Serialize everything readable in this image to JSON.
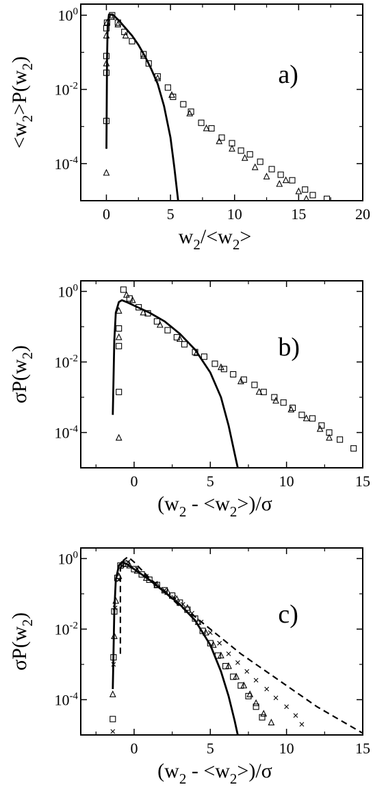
{
  "chart_data": [
    {
      "id": "a",
      "type": "scatter",
      "panel_label": "a)",
      "ylabel": "<w₂>P(w₂)",
      "xlabel": "w₂/<w₂>",
      "y_scale": "log",
      "xlim": [
        -2,
        20
      ],
      "ylim_log10": [
        -5,
        0.3
      ],
      "xticks": [
        0,
        5,
        10,
        15,
        20
      ],
      "xtick_labels": [
        "0",
        "5",
        "10",
        "15",
        "20"
      ],
      "yticks_log10": [
        0,
        -2,
        -4
      ],
      "ytick_labels": [
        "10⁰",
        "10⁻²",
        "10⁻⁴"
      ],
      "grid": false,
      "series": [
        {
          "marker": "square",
          "points": [
            [
              0.0,
              -2.85
            ],
            [
              0.0,
              -1.55
            ],
            [
              0.0,
              -1.1
            ],
            [
              0.0,
              -0.35
            ],
            [
              0.05,
              -0.2
            ],
            [
              0.45,
              0.0
            ],
            [
              0.9,
              -0.2
            ],
            [
              1.4,
              -0.45
            ],
            [
              2.0,
              -0.7
            ],
            [
              2.9,
              -1.05
            ],
            [
              3.3,
              -1.3
            ],
            [
              4.0,
              -1.65
            ],
            [
              4.8,
              -1.95
            ],
            [
              5.2,
              -2.2
            ],
            [
              6.0,
              -2.4
            ],
            [
              6.6,
              -2.6
            ],
            [
              7.4,
              -2.9
            ],
            [
              8.2,
              -3.05
            ],
            [
              9.0,
              -3.3
            ],
            [
              9.8,
              -3.45
            ],
            [
              10.5,
              -3.65
            ],
            [
              11.2,
              -3.75
            ],
            [
              12.0,
              -3.95
            ],
            [
              12.9,
              -4.15
            ],
            [
              13.6,
              -4.3
            ],
            [
              14.5,
              -4.45
            ],
            [
              15.5,
              -4.7
            ],
            [
              16.1,
              -4.85
            ],
            [
              17.2,
              -4.95
            ]
          ]
        },
        {
          "marker": "triangle",
          "points": [
            [
              0.0,
              -4.25
            ],
            [
              0.0,
              -1.3
            ],
            [
              0.0,
              -0.55
            ],
            [
              0.05,
              -0.2
            ],
            [
              0.4,
              -0.05
            ],
            [
              0.9,
              -0.25
            ],
            [
              1.5,
              -0.55
            ],
            [
              2.9,
              -1.1
            ],
            [
              4.0,
              -1.7
            ],
            [
              5.1,
              -2.15
            ],
            [
              6.5,
              -2.65
            ],
            [
              7.8,
              -3.05
            ],
            [
              8.8,
              -3.4
            ],
            [
              9.8,
              -3.6
            ],
            [
              10.8,
              -3.85
            ],
            [
              11.6,
              -4.1
            ],
            [
              12.5,
              -4.35
            ],
            [
              13.5,
              -4.55
            ],
            [
              14.0,
              -4.45
            ],
            [
              15.0,
              -4.75
            ],
            [
              15.6,
              -4.95
            ]
          ]
        },
        {
          "style": "solid",
          "points": [
            [
              0.0,
              -3.6
            ],
            [
              0.05,
              -1.2
            ],
            [
              0.1,
              -0.3
            ],
            [
              0.2,
              0.02
            ],
            [
              0.5,
              0.02
            ],
            [
              1.0,
              -0.15
            ],
            [
              1.5,
              -0.35
            ],
            [
              2.0,
              -0.55
            ],
            [
              2.5,
              -0.8
            ],
            [
              3.0,
              -1.1
            ],
            [
              3.5,
              -1.45
            ],
            [
              4.0,
              -1.85
            ],
            [
              4.5,
              -2.45
            ],
            [
              5.0,
              -3.3
            ],
            [
              5.3,
              -4.1
            ],
            [
              5.6,
              -5.0
            ]
          ]
        }
      ]
    },
    {
      "id": "b",
      "type": "scatter",
      "panel_label": "b)",
      "ylabel": "σP(w₂)",
      "xlabel": "(w₂ - <w₂>)/σ",
      "y_scale": "log",
      "xlim": [
        -3.5,
        15
      ],
      "ylim_log10": [
        -5,
        0.3
      ],
      "xticks": [
        0,
        5,
        10,
        15
      ],
      "xtick_labels": [
        "0",
        "5",
        "10",
        "15"
      ],
      "yticks_log10": [
        0,
        -2,
        -4
      ],
      "ytick_labels": [
        "10⁰",
        "10⁻²",
        "10⁻⁴"
      ],
      "grid": false,
      "series": [
        {
          "marker": "square",
          "points": [
            [
              -1.0,
              -2.85
            ],
            [
              -1.0,
              -1.55
            ],
            [
              -1.0,
              -1.05
            ],
            [
              -0.7,
              0.05
            ],
            [
              -0.3,
              -0.2
            ],
            [
              0.3,
              -0.45
            ],
            [
              0.9,
              -0.62
            ],
            [
              1.5,
              -0.85
            ],
            [
              2.2,
              -1.1
            ],
            [
              2.8,
              -1.3
            ],
            [
              3.3,
              -1.5
            ],
            [
              4.0,
              -1.72
            ],
            [
              4.6,
              -1.85
            ],
            [
              5.3,
              -2.05
            ],
            [
              5.9,
              -2.2
            ],
            [
              6.5,
              -2.35
            ],
            [
              7.2,
              -2.5
            ],
            [
              7.9,
              -2.65
            ],
            [
              8.5,
              -2.85
            ],
            [
              9.2,
              -3.0
            ],
            [
              9.8,
              -3.15
            ],
            [
              10.4,
              -3.3
            ],
            [
              11.0,
              -3.5
            ],
            [
              11.7,
              -3.6
            ],
            [
              12.3,
              -3.8
            ],
            [
              12.8,
              -4.0
            ],
            [
              13.5,
              -4.2
            ],
            [
              14.4,
              -4.45
            ]
          ]
        },
        {
          "marker": "triangle",
          "points": [
            [
              -1.0,
              -4.15
            ],
            [
              -1.0,
              -1.3
            ],
            [
              -1.0,
              -0.55
            ],
            [
              -0.5,
              -0.1
            ],
            [
              -0.1,
              -0.25
            ],
            [
              0.6,
              -0.6
            ],
            [
              1.7,
              -0.95
            ],
            [
              3.0,
              -1.35
            ],
            [
              4.1,
              -1.75
            ],
            [
              5.7,
              -2.15
            ],
            [
              7.0,
              -2.55
            ],
            [
              8.2,
              -2.85
            ],
            [
              9.3,
              -3.1
            ],
            [
              10.3,
              -3.35
            ],
            [
              11.3,
              -3.6
            ],
            [
              12.2,
              -3.9
            ],
            [
              12.8,
              -4.15
            ]
          ]
        },
        {
          "style": "solid",
          "points": [
            [
              -1.4,
              -3.5
            ],
            [
              -1.3,
              -1.4
            ],
            [
              -1.2,
              -0.6
            ],
            [
              -1.0,
              -0.3
            ],
            [
              -0.8,
              -0.25
            ],
            [
              -0.5,
              -0.3
            ],
            [
              0.0,
              -0.4
            ],
            [
              1.0,
              -0.6
            ],
            [
              2.0,
              -0.85
            ],
            [
              3.0,
              -1.2
            ],
            [
              4.0,
              -1.65
            ],
            [
              5.0,
              -2.3
            ],
            [
              5.7,
              -3.0
            ],
            [
              6.2,
              -3.8
            ],
            [
              6.6,
              -4.6
            ],
            [
              6.8,
              -5.0
            ]
          ]
        }
      ]
    },
    {
      "id": "c",
      "type": "scatter",
      "panel_label": "c)",
      "ylabel": "σP(w₂)",
      "xlabel": "(w₂ - <w₂>)/σ",
      "y_scale": "log",
      "xlim": [
        -3.5,
        15
      ],
      "ylim_log10": [
        -5,
        0.3
      ],
      "xticks": [
        0,
        5,
        10,
        15
      ],
      "xtick_labels": [
        "0",
        "5",
        "10",
        "15"
      ],
      "yticks_log10": [
        0,
        -2,
        -4
      ],
      "ytick_labels": [
        "10⁰",
        "10⁻²",
        "10⁻⁴"
      ],
      "grid": false,
      "series": [
        {
          "marker": "square",
          "points": [
            [
              -1.4,
              -4.55
            ],
            [
              -1.35,
              -2.8
            ],
            [
              -1.3,
              -1.5
            ],
            [
              -1.1,
              -0.55
            ],
            [
              -0.9,
              -0.2
            ],
            [
              -0.5,
              -0.15
            ],
            [
              0.0,
              -0.3
            ],
            [
              0.5,
              -0.45
            ],
            [
              1.0,
              -0.6
            ],
            [
              1.5,
              -0.75
            ],
            [
              2.0,
              -0.9
            ],
            [
              2.5,
              -1.05
            ],
            [
              3.0,
              -1.25
            ],
            [
              3.5,
              -1.45
            ],
            [
              4.0,
              -1.7
            ],
            [
              4.5,
              -2.05
            ],
            [
              5.0,
              -2.4
            ],
            [
              5.5,
              -2.75
            ],
            [
              6.0,
              -3.05
            ],
            [
              6.5,
              -3.35
            ],
            [
              7.0,
              -3.6
            ],
            [
              7.5,
              -3.9
            ],
            [
              8.0,
              -4.2
            ],
            [
              8.4,
              -4.5
            ]
          ]
        },
        {
          "marker": "triangle",
          "points": [
            [
              -1.4,
              -3.85
            ],
            [
              -1.3,
              -2.2
            ],
            [
              -1.2,
              -1.2
            ],
            [
              -1.0,
              -0.5
            ],
            [
              -0.7,
              -0.15
            ],
            [
              -0.3,
              -0.2
            ],
            [
              0.2,
              -0.35
            ],
            [
              0.8,
              -0.55
            ],
            [
              1.5,
              -0.75
            ],
            [
              2.2,
              -0.95
            ],
            [
              2.8,
              -1.15
            ],
            [
              3.5,
              -1.4
            ],
            [
              4.2,
              -1.8
            ],
            [
              4.7,
              -2.1
            ],
            [
              5.2,
              -2.45
            ],
            [
              5.7,
              -2.75
            ],
            [
              6.2,
              -3.05
            ],
            [
              6.7,
              -3.35
            ],
            [
              7.2,
              -3.6
            ],
            [
              7.6,
              -3.85
            ],
            [
              8.0,
              -4.1
            ],
            [
              8.5,
              -4.4
            ],
            [
              9.0,
              -4.65
            ]
          ]
        },
        {
          "marker": "cross",
          "points": [
            [
              -1.4,
              -4.9
            ],
            [
              -1.35,
              -3.0
            ],
            [
              -1.25,
              -1.4
            ],
            [
              -1.0,
              -0.6
            ],
            [
              -0.8,
              -0.2
            ],
            [
              -0.4,
              -0.1
            ],
            [
              0.2,
              -0.3
            ],
            [
              0.8,
              -0.5
            ],
            [
              1.4,
              -0.7
            ],
            [
              2.0,
              -0.9
            ],
            [
              2.6,
              -1.1
            ],
            [
              3.2,
              -1.3
            ],
            [
              3.8,
              -1.55
            ],
            [
              4.4,
              -1.8
            ],
            [
              5.0,
              -2.1
            ],
            [
              5.6,
              -2.4
            ],
            [
              6.2,
              -2.7
            ],
            [
              6.8,
              -2.95
            ],
            [
              7.4,
              -3.2
            ],
            [
              8.0,
              -3.45
            ],
            [
              8.7,
              -3.7
            ],
            [
              9.3,
              -3.95
            ],
            [
              10.0,
              -4.2
            ],
            [
              10.6,
              -4.45
            ],
            [
              11.0,
              -4.7
            ]
          ]
        },
        {
          "style": "solid",
          "points": [
            [
              -1.4,
              -3.7
            ],
            [
              -1.3,
              -1.5
            ],
            [
              -1.2,
              -0.6
            ],
            [
              -1.0,
              -0.2
            ],
            [
              -0.8,
              -0.1
            ],
            [
              -0.5,
              -0.15
            ],
            [
              0.0,
              -0.3
            ],
            [
              1.0,
              -0.6
            ],
            [
              2.0,
              -0.95
            ],
            [
              3.0,
              -1.3
            ],
            [
              4.0,
              -1.75
            ],
            [
              5.0,
              -2.45
            ],
            [
              5.7,
              -3.2
            ],
            [
              6.2,
              -3.9
            ],
            [
              6.6,
              -4.6
            ],
            [
              6.8,
              -5.0
            ]
          ]
        },
        {
          "style": "dashed",
          "points": [
            [
              -0.9,
              -2.7
            ],
            [
              -0.9,
              -0.3
            ],
            [
              -0.7,
              -0.05
            ],
            [
              -0.4,
              0.05
            ],
            [
              0.0,
              -0.1
            ],
            [
              1.0,
              -0.55
            ],
            [
              2.0,
              -0.95
            ],
            [
              3.0,
              -1.35
            ],
            [
              4.0,
              -1.65
            ],
            [
              5.0,
              -2.0
            ],
            [
              6.0,
              -2.35
            ],
            [
              7.0,
              -2.7
            ],
            [
              8.0,
              -3.0
            ],
            [
              9.0,
              -3.3
            ],
            [
              10.0,
              -3.6
            ],
            [
              11.0,
              -3.9
            ],
            [
              12.0,
              -4.2
            ],
            [
              13.0,
              -4.45
            ],
            [
              14.0,
              -4.7
            ],
            [
              15.0,
              -4.95
            ]
          ]
        }
      ]
    }
  ]
}
